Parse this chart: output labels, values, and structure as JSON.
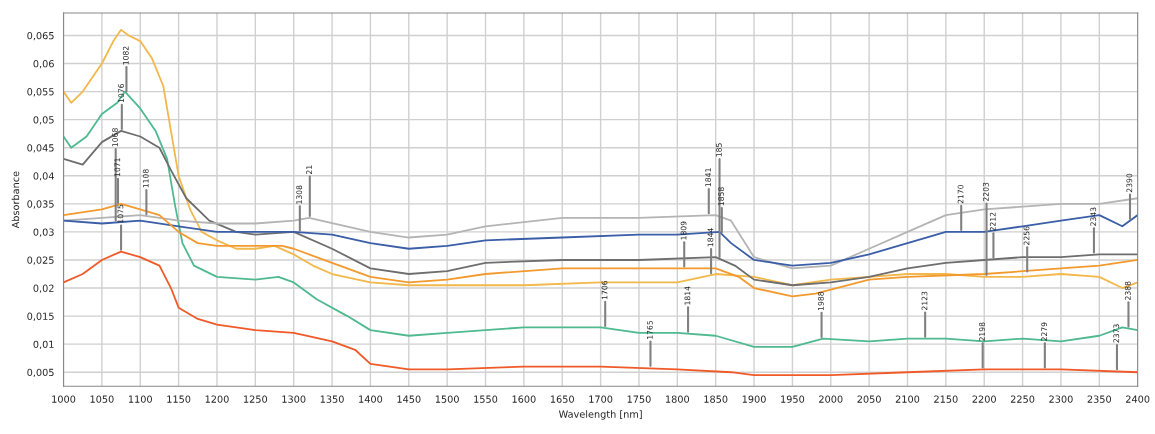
{
  "chart_data": {
    "type": "line",
    "xlabel": "Wavelength [nm]",
    "ylabel": "Absorbance",
    "xlim": [
      1000,
      2400
    ],
    "xticks": [
      1000,
      1050,
      1100,
      1150,
      1200,
      1250,
      1300,
      1350,
      1400,
      1450,
      1500,
      1550,
      1600,
      1650,
      1700,
      1750,
      1800,
      1850,
      1900,
      1950,
      2000,
      2050,
      2100,
      2150,
      2200,
      2250,
      2300,
      2350,
      2400
    ],
    "ylim": [
      0.0025,
      0.069
    ],
    "yticks": [
      {
        "value": 0.005,
        "label": "0,005"
      },
      {
        "value": 0.01,
        "label": "0,01"
      },
      {
        "value": 0.015,
        "label": "0,015"
      },
      {
        "value": 0.02,
        "label": "0,02"
      },
      {
        "value": 0.025,
        "label": "0,025"
      },
      {
        "value": 0.03,
        "label": "0,03"
      },
      {
        "value": 0.035,
        "label": "0,035"
      },
      {
        "value": 0.04,
        "label": "0,04"
      },
      {
        "value": 0.045,
        "label": "0,045"
      },
      {
        "value": 0.05,
        "label": "0,05"
      },
      {
        "value": 0.055,
        "label": "0,055"
      },
      {
        "value": 0.06,
        "label": "0,06"
      },
      {
        "value": 0.065,
        "label": "0,065"
      }
    ],
    "grid": true,
    "marker": "none",
    "line_style": "solid",
    "series": [
      {
        "color": "#f2b84b",
        "x": [
          1000,
          1010,
          1025,
          1050,
          1065,
          1075,
          1085,
          1100,
          1115,
          1130,
          1140,
          1150,
          1165,
          1180,
          1200,
          1225,
          1250,
          1275,
          1300,
          1325,
          1350,
          1400,
          1450,
          1500,
          1600,
          1700,
          1800,
          1850,
          1900,
          1950,
          2000,
          2050,
          2100,
          2150,
          2200,
          2250,
          2300,
          2350,
          2380,
          2400
        ],
        "values": [
          0.055,
          0.053,
          0.055,
          0.06,
          0.064,
          0.066,
          0.065,
          0.064,
          0.061,
          0.056,
          0.048,
          0.04,
          0.034,
          0.03,
          0.0285,
          0.027,
          0.027,
          0.0275,
          0.026,
          0.024,
          0.0225,
          0.021,
          0.0205,
          0.0205,
          0.0205,
          0.021,
          0.021,
          0.0225,
          0.022,
          0.0205,
          0.0215,
          0.022,
          0.0225,
          0.0225,
          0.022,
          0.022,
          0.0225,
          0.022,
          0.02,
          0.021
        ]
      },
      {
        "color": "#4fb990",
        "x": [
          1000,
          1010,
          1030,
          1050,
          1070,
          1080,
          1100,
          1120,
          1135,
          1145,
          1155,
          1170,
          1200,
          1250,
          1280,
          1300,
          1330,
          1370,
          1400,
          1450,
          1500,
          1550,
          1600,
          1700,
          1750,
          1800,
          1850,
          1900,
          1950,
          1990,
          2050,
          2100,
          2150,
          2200,
          2250,
          2300,
          2350,
          2380,
          2400
        ],
        "values": [
          0.047,
          0.045,
          0.047,
          0.051,
          0.053,
          0.055,
          0.052,
          0.048,
          0.043,
          0.035,
          0.028,
          0.024,
          0.022,
          0.0215,
          0.022,
          0.021,
          0.018,
          0.015,
          0.0125,
          0.0115,
          0.012,
          0.0125,
          0.013,
          0.013,
          0.012,
          0.012,
          0.0115,
          0.0095,
          0.0095,
          0.011,
          0.0105,
          0.011,
          0.011,
          0.0105,
          0.011,
          0.0105,
          0.0115,
          0.013,
          0.0125
        ]
      },
      {
        "color": "#6e6e6e",
        "x": [
          1000,
          1025,
          1050,
          1075,
          1100,
          1125,
          1140,
          1160,
          1190,
          1225,
          1250,
          1300,
          1350,
          1400,
          1450,
          1500,
          1550,
          1650,
          1750,
          1850,
          1875,
          1900,
          1950,
          2000,
          2050,
          2100,
          2150,
          2200,
          2250,
          2300,
          2350,
          2400
        ],
        "values": [
          0.043,
          0.042,
          0.046,
          0.048,
          0.047,
          0.045,
          0.041,
          0.036,
          0.032,
          0.03,
          0.0295,
          0.03,
          0.027,
          0.0235,
          0.0225,
          0.023,
          0.0245,
          0.025,
          0.025,
          0.0255,
          0.024,
          0.0215,
          0.0205,
          0.021,
          0.022,
          0.0235,
          0.0245,
          0.025,
          0.0255,
          0.0255,
          0.026,
          0.026
        ]
      },
      {
        "color": "#b4b4b4",
        "x": [
          1000,
          1100,
          1150,
          1200,
          1250,
          1300,
          1320,
          1400,
          1450,
          1500,
          1550,
          1650,
          1750,
          1850,
          1870,
          1900,
          1950,
          2000,
          2050,
          2100,
          2150,
          2200,
          2300,
          2350,
          2400
        ],
        "values": [
          0.032,
          0.033,
          0.032,
          0.0315,
          0.0315,
          0.032,
          0.0325,
          0.03,
          0.029,
          0.0295,
          0.031,
          0.0325,
          0.0325,
          0.033,
          0.032,
          0.0255,
          0.0235,
          0.024,
          0.027,
          0.03,
          0.033,
          0.034,
          0.035,
          0.035,
          0.036
        ]
      },
      {
        "color": "#3a5ea8",
        "x": [
          1000,
          1050,
          1100,
          1150,
          1200,
          1250,
          1300,
          1350,
          1400,
          1450,
          1500,
          1550,
          1650,
          1750,
          1800,
          1855,
          1870,
          1900,
          1950,
          2000,
          2050,
          2100,
          2150,
          2200,
          2250,
          2300,
          2350,
          2380,
          2400
        ],
        "values": [
          0.032,
          0.0315,
          0.032,
          0.031,
          0.03,
          0.03,
          0.03,
          0.0295,
          0.028,
          0.027,
          0.0275,
          0.0285,
          0.029,
          0.0295,
          0.0295,
          0.03,
          0.028,
          0.025,
          0.024,
          0.0245,
          0.026,
          0.028,
          0.03,
          0.03,
          0.031,
          0.032,
          0.033,
          0.031,
          0.033
        ]
      },
      {
        "color": "#f39a2e",
        "x": [
          1000,
          1050,
          1075,
          1100,
          1125,
          1150,
          1175,
          1200,
          1250,
          1285,
          1300,
          1350,
          1400,
          1450,
          1500,
          1550,
          1650,
          1750,
          1850,
          1880,
          1900,
          1950,
          1980,
          2050,
          2100,
          2200,
          2300,
          2350,
          2400
        ],
        "values": [
          0.033,
          0.034,
          0.035,
          0.034,
          0.033,
          0.03,
          0.028,
          0.0275,
          0.0275,
          0.0275,
          0.027,
          0.0245,
          0.022,
          0.021,
          0.0215,
          0.0225,
          0.0235,
          0.0235,
          0.0235,
          0.022,
          0.02,
          0.0185,
          0.019,
          0.0215,
          0.022,
          0.0225,
          0.0235,
          0.024,
          0.025
        ]
      },
      {
        "color": "#f05a28",
        "x": [
          1000,
          1025,
          1050,
          1075,
          1100,
          1125,
          1140,
          1150,
          1175,
          1200,
          1250,
          1300,
          1350,
          1380,
          1400,
          1450,
          1500,
          1600,
          1700,
          1800,
          1870,
          1900,
          2000,
          2100,
          2200,
          2300,
          2400
        ],
        "values": [
          0.021,
          0.0225,
          0.025,
          0.0265,
          0.0255,
          0.024,
          0.02,
          0.0165,
          0.0145,
          0.0135,
          0.0125,
          0.012,
          0.0105,
          0.009,
          0.0065,
          0.0055,
          0.0055,
          0.006,
          0.006,
          0.0055,
          0.005,
          0.0045,
          0.0045,
          0.005,
          0.0055,
          0.0055,
          0.005
        ]
      }
    ],
    "annotations": [
      {
        "text": "1082",
        "x": 1082,
        "y": 0.0547
      },
      {
        "text": "1076",
        "x": 1076,
        "y": 0.048
      },
      {
        "text": "1071",
        "x": 1071,
        "y": 0.0348
      },
      {
        "text": "1068",
        "x": 1068,
        "y": 0.0317
      },
      {
        "text": "1108",
        "x": 1108,
        "y": 0.0328
      },
      {
        "text": "1075",
        "x": 1075,
        "y": 0.0265
      },
      {
        "text": "1308",
        "x": 1308,
        "y": 0.0299
      },
      {
        "text": "21",
        "x": 1321,
        "y": 0.0325
      },
      {
        "text": "1706",
        "x": 1706,
        "y": 0.0129
      },
      {
        "text": "1765",
        "x": 1765,
        "y": 0.0058
      },
      {
        "text": "1809",
        "x": 1809,
        "y": 0.0235
      },
      {
        "text": "1814",
        "x": 1814,
        "y": 0.0119
      },
      {
        "text": "1841",
        "x": 1841,
        "y": 0.033
      },
      {
        "text": "1858",
        "x": 1858,
        "y": 0.0296
      },
      {
        "text": "1844",
        "x": 1844,
        "y": 0.0223
      },
      {
        "text": "185",
        "x": 1855,
        "y": 0.0252
      },
      {
        "text": "1988",
        "x": 1988,
        "y": 0.01095
      },
      {
        "text": "2123",
        "x": 2123,
        "y": 0.011
      },
      {
        "text": "2170",
        "x": 2170,
        "y": 0.03
      },
      {
        "text": "2212",
        "x": 2212,
        "y": 0.0251
      },
      {
        "text": "2203",
        "x": 2203,
        "y": 0.022
      },
      {
        "text": "2256",
        "x": 2256,
        "y": 0.0226
      },
      {
        "text": "2198",
        "x": 2198,
        "y": 0.0055
      },
      {
        "text": "2279",
        "x": 2279,
        "y": 0.0055
      },
      {
        "text": "2343",
        "x": 2343,
        "y": 0.026
      },
      {
        "text": "2390",
        "x": 2390,
        "y": 0.032
      },
      {
        "text": "2388",
        "x": 2388,
        "y": 0.0128
      },
      {
        "text": "2373",
        "x": 2373,
        "y": 0.0052
      }
    ]
  }
}
